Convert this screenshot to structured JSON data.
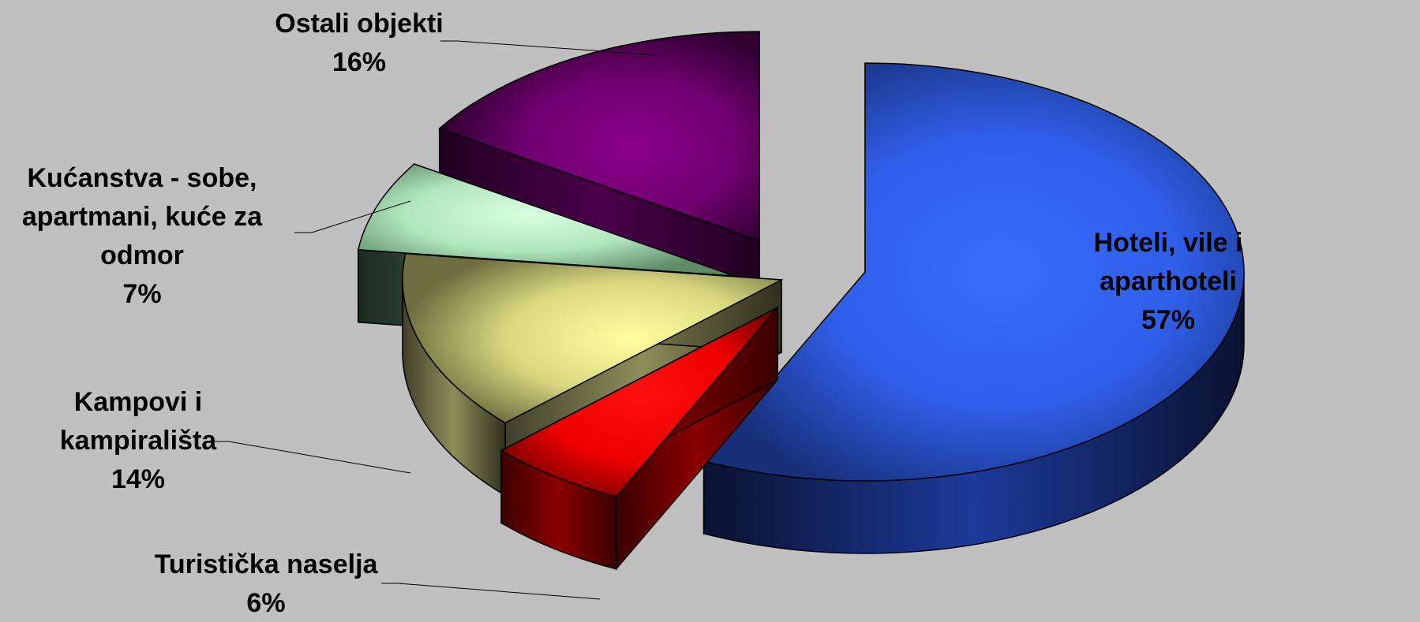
{
  "chart_data": {
    "type": "pie",
    "style": "3d-exploded",
    "title": "",
    "slices": [
      {
        "label": [
          "Hoteli, vile i",
          "aparthoteli"
        ],
        "percent_label": "57%",
        "value": 57,
        "color": "#2f5ee8"
      },
      {
        "label": [
          "Turistička naselja"
        ],
        "percent_label": "6%",
        "value": 6,
        "color": "#ff0000"
      },
      {
        "label": [
          "Kampovi i",
          "kampirališta"
        ],
        "percent_label": "14%",
        "value": 14,
        "color": "#f5f58c"
      },
      {
        "label": [
          "Kućanstva - sobe,",
          "apartmani, kuće za",
          "odmor"
        ],
        "percent_label": "7%",
        "value": 7,
        "color": "#b8f0c8"
      },
      {
        "label": [
          "Ostali objekti"
        ],
        "percent_label": "16%",
        "value": 16,
        "color": "#800080"
      }
    ]
  }
}
